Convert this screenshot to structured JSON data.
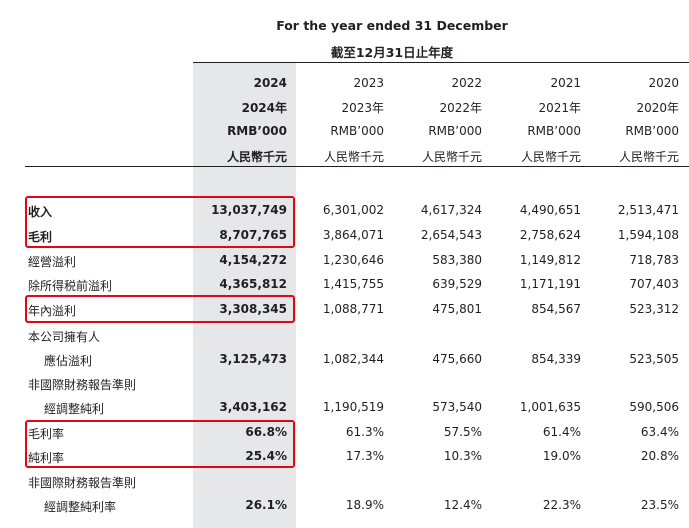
{
  "header": {
    "period_en": "For the year ended 31 December",
    "period_zh": "截至12月31日止年度"
  },
  "columns": [
    {
      "year": "2024",
      "year_zh": "2024年",
      "unit_en": "RMB’000",
      "unit_zh": "人民幣千元",
      "highlight": true
    },
    {
      "year": "2023",
      "year_zh": "2023年",
      "unit_en": "RMB’000",
      "unit_zh": "人民幣千元",
      "highlight": false
    },
    {
      "year": "2022",
      "year_zh": "2022年",
      "unit_en": "RMB’000",
      "unit_zh": "人民幣千元",
      "highlight": false
    },
    {
      "year": "2021",
      "year_zh": "2021年",
      "unit_en": "RMB’000",
      "unit_zh": "人民幣千元",
      "highlight": false
    },
    {
      "year": "2020",
      "year_zh": "2020年",
      "unit_en": "RMB’000",
      "unit_zh": "人民幣千元",
      "highlight": false
    }
  ],
  "rows": [
    {
      "label": "收入",
      "bold": true,
      "values": [
        "13,037,749",
        "6,301,002",
        "4,617,324",
        "4,490,651",
        "2,513,471"
      ]
    },
    {
      "label": "毛利",
      "bold": true,
      "values": [
        "8,707,765",
        "3,864,071",
        "2,654,543",
        "2,758,624",
        "1,594,108"
      ]
    },
    {
      "label": "經營溢利",
      "bold": false,
      "values": [
        "4,154,272",
        "1,230,646",
        "583,380",
        "1,149,812",
        "718,783"
      ]
    },
    {
      "label": "除所得税前溢利",
      "bold": false,
      "values": [
        "4,365,812",
        "1,415,755",
        "639,529",
        "1,171,191",
        "707,403"
      ]
    },
    {
      "label": "年內溢利",
      "bold": false,
      "values": [
        "3,308,345",
        "1,088,771",
        "475,801",
        "854,567",
        "523,312"
      ]
    },
    {
      "label": "本公司擁有人",
      "bold": false,
      "values": [
        "",
        "",
        "",
        "",
        ""
      ]
    },
    {
      "label": "應佔溢利",
      "bold": false,
      "indent": true,
      "values": [
        "3,125,473",
        "1,082,344",
        "475,660",
        "854,339",
        "523,505"
      ]
    },
    {
      "label": "非國際財務報告準則",
      "bold": false,
      "values": [
        "",
        "",
        "",
        "",
        ""
      ]
    },
    {
      "label": "經調整純利",
      "bold": false,
      "indent": true,
      "values": [
        "3,403,162",
        "1,190,519",
        "573,540",
        "1,001,635",
        "590,506"
      ]
    },
    {
      "label": "毛利率",
      "bold": false,
      "values": [
        "66.8%",
        "61.3%",
        "57.5%",
        "61.4%",
        "63.4%"
      ]
    },
    {
      "label": "純利率",
      "bold": false,
      "values": [
        "25.4%",
        "17.3%",
        "10.3%",
        "19.0%",
        "20.8%"
      ]
    },
    {
      "label": "非國際財務報告準則",
      "bold": false,
      "values": [
        "",
        "",
        "",
        "",
        ""
      ]
    },
    {
      "label": "經調整純利率",
      "bold": false,
      "indent": true,
      "values": [
        "26.1%",
        "18.9%",
        "12.4%",
        "22.3%",
        "23.5%"
      ]
    }
  ],
  "colors": {
    "highlight_column": "#e6e7e8",
    "annotation_box": "#e30613",
    "text": "#231f20"
  }
}
